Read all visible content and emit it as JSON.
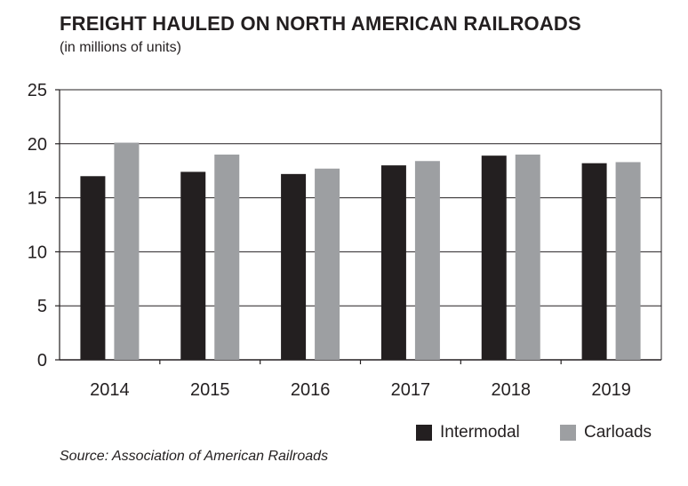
{
  "header": {
    "title": "FREIGHT HAULED ON NORTH AMERICAN RAILROADS",
    "subtitle": "(in millions of units)"
  },
  "footer": {
    "source": "Source: Association of American Railroads"
  },
  "colors": {
    "intermodal": "#231f20",
    "carloads": "#9d9fa2",
    "axis": "#231f20",
    "grid": "#231f20"
  },
  "chart_data": {
    "type": "bar",
    "title": "FREIGHT HAULED ON NORTH AMERICAN RAILROADS",
    "subtitle": "(in millions of units)",
    "categories": [
      "2014",
      "2015",
      "2016",
      "2017",
      "2018",
      "2019"
    ],
    "series": [
      {
        "name": "Intermodal",
        "values": [
          17.0,
          17.4,
          17.2,
          18.0,
          18.9,
          18.2
        ]
      },
      {
        "name": "Carloads",
        "values": [
          20.1,
          19.0,
          17.7,
          18.4,
          19.0,
          18.3
        ]
      }
    ],
    "ylim": [
      0,
      25
    ],
    "yticks": [
      "0",
      "5",
      "10",
      "15",
      "20",
      "25"
    ],
    "grid": true,
    "legend": "bottom-right",
    "xlabel": "",
    "ylabel": ""
  }
}
